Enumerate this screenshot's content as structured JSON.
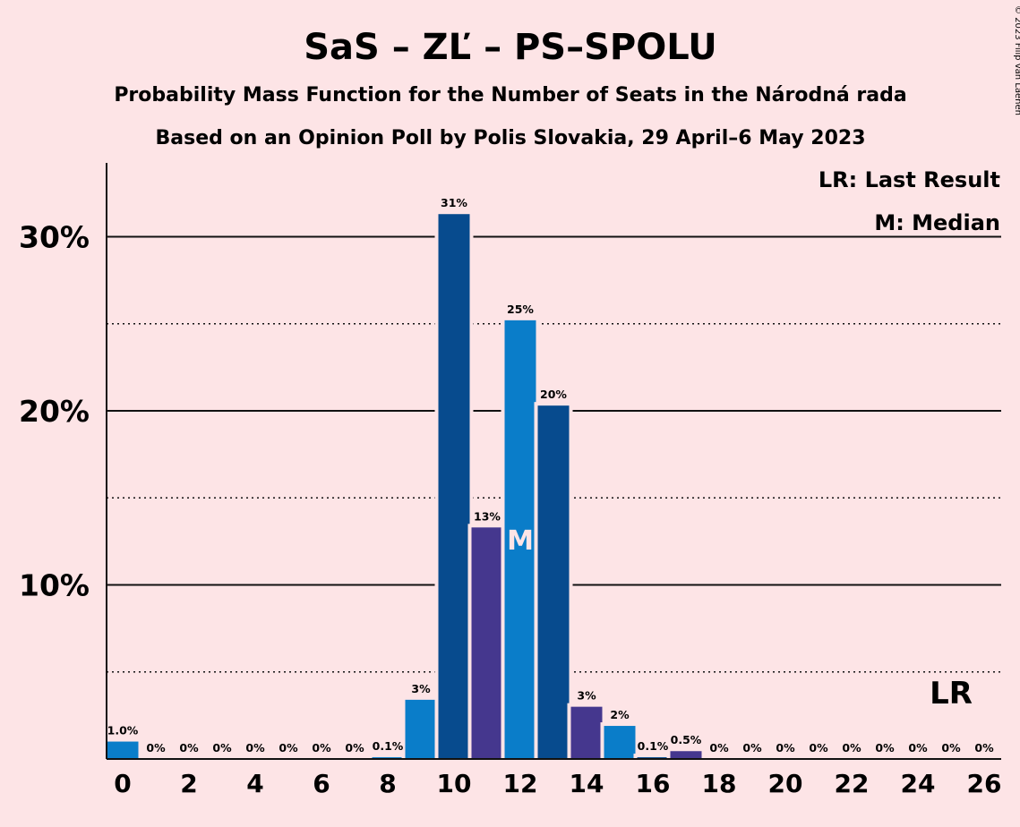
{
  "chart_data": {
    "type": "bar",
    "title": "SaS – ZĽ – PS–SPOLU",
    "subtitle_1": "Probability Mass Function for the Number of Seats in the Národná rada",
    "subtitle_2": "Based on an Opinion Poll by Polis Slovakia, 29 April–6 May 2023",
    "copyright": "© 2023 Filip van Laenen",
    "x": [
      0,
      1,
      2,
      3,
      4,
      5,
      6,
      7,
      8,
      9,
      10,
      11,
      12,
      13,
      14,
      15,
      16,
      17,
      18,
      19,
      20,
      21,
      22,
      23,
      24,
      25,
      26
    ],
    "values": [
      1.0,
      0,
      0,
      0,
      0,
      0,
      0,
      0,
      0.1,
      3.4,
      31.3,
      13.3,
      25.2,
      20.3,
      3.0,
      1.9,
      0.1,
      0.45,
      0,
      0,
      0,
      0,
      0,
      0,
      0,
      0,
      0
    ],
    "data_labels": [
      "1.0%",
      "0%",
      "0%",
      "0%",
      "0%",
      "0%",
      "0%",
      "0%",
      "0.1%",
      "3%",
      "31%",
      "13%",
      "25%",
      "20%",
      "3%",
      "2%",
      "0.1%",
      "0.5%",
      "0%",
      "0%",
      "0%",
      "0%",
      "0%",
      "0%",
      "0%",
      "0%",
      "0%"
    ],
    "bar_colors": [
      "#0A7DC9",
      "#0A7DC9",
      "#0A7DC9",
      "#0A7DC9",
      "#0A7DC9",
      "#0A7DC9",
      "#0A7DC9",
      "#0A7DC9",
      "#0A7DC9",
      "#0A7DC9",
      "#074B8E",
      "#45378E",
      "#0A7DC9",
      "#074B8E",
      "#45378E",
      "#0A7DC9",
      "#074B8E",
      "#45378E",
      "#0A7DC9",
      "#074B8E",
      "#45378E",
      "#0A7DC9",
      "#074B8E",
      "#45378E",
      "#0A7DC9",
      "#074B8E",
      "#45378E"
    ],
    "y_ticks": [
      {
        "value": 10,
        "label": "10%"
      },
      {
        "value": 20,
        "label": "20%"
      },
      {
        "value": 30,
        "label": "30%"
      }
    ],
    "x_ticks": [
      0,
      2,
      4,
      6,
      8,
      10,
      12,
      14,
      16,
      18,
      20,
      22,
      24,
      26
    ],
    "ylim": [
      0,
      34
    ],
    "grid": "solid at 10% steps, dotted at 5% steps",
    "median_seat": 12,
    "median_marker": "M",
    "last_result_seat": 25,
    "last_result_marker": "LR",
    "legend": {
      "placement": "top-right",
      "entries": [
        "LR: Last Result",
        "M: Median"
      ]
    }
  }
}
